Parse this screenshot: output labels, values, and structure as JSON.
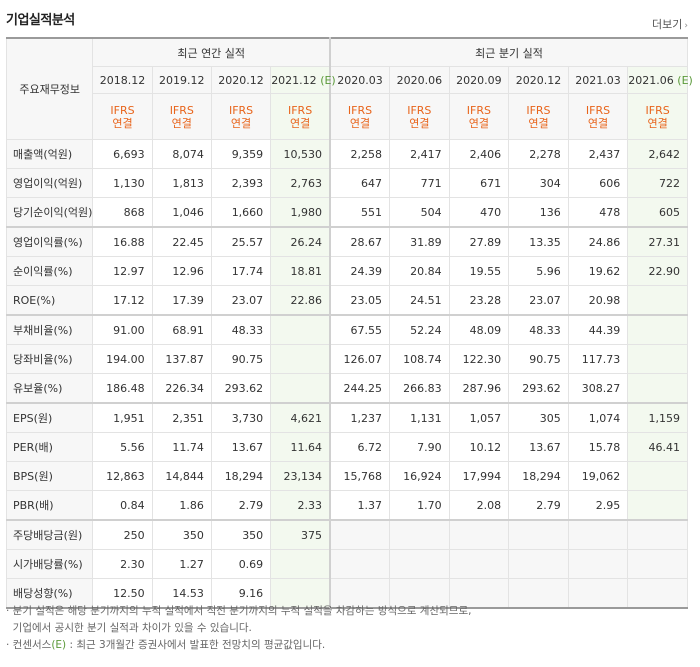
{
  "title": "기업실적분석",
  "more_label": "더보기",
  "more_arrow": "›",
  "corner_label": "주요재무정보",
  "group_annual": "최근 연간 실적",
  "group_quarter": "최근 분기 실적",
  "ifrs_line1": "IFRS",
  "ifrs_line2": "연결",
  "estimate_mark": "(E)",
  "periods": [
    {
      "label": "2018.12",
      "est": false
    },
    {
      "label": "2019.12",
      "est": false
    },
    {
      "label": "2020.12",
      "est": false
    },
    {
      "label": "2021.12",
      "est": true
    },
    {
      "label": "2020.03",
      "est": false
    },
    {
      "label": "2020.06",
      "est": false
    },
    {
      "label": "2020.09",
      "est": false
    },
    {
      "label": "2020.12",
      "est": false
    },
    {
      "label": "2021.03",
      "est": false
    },
    {
      "label": "2021.06",
      "est": true
    }
  ],
  "rows": [
    {
      "label": "매출액(억원)",
      "values": [
        "6,693",
        "8,074",
        "9,359",
        "10,530",
        "2,258",
        "2,417",
        "2,406",
        "2,278",
        "2,437",
        "2,642"
      ]
    },
    {
      "label": "영업이익(억원)",
      "values": [
        "1,130",
        "1,813",
        "2,393",
        "2,763",
        "647",
        "771",
        "671",
        "304",
        "606",
        "722"
      ]
    },
    {
      "label": "당기순이익(억원)",
      "values": [
        "868",
        "1,046",
        "1,660",
        "1,980",
        "551",
        "504",
        "470",
        "136",
        "478",
        "605"
      ]
    },
    {
      "label": "영업이익률(%)",
      "values": [
        "16.88",
        "22.45",
        "25.57",
        "26.24",
        "28.67",
        "31.89",
        "27.89",
        "13.35",
        "24.86",
        "27.31"
      ]
    },
    {
      "label": "순이익률(%)",
      "values": [
        "12.97",
        "12.96",
        "17.74",
        "18.81",
        "24.39",
        "20.84",
        "19.55",
        "5.96",
        "19.62",
        "22.90"
      ]
    },
    {
      "label": "ROE(%)",
      "values": [
        "17.12",
        "17.39",
        "23.07",
        "22.86",
        "23.05",
        "24.51",
        "23.28",
        "23.07",
        "20.98",
        ""
      ]
    },
    {
      "label": "부채비율(%)",
      "values": [
        "91.00",
        "68.91",
        "48.33",
        "",
        "67.55",
        "52.24",
        "48.09",
        "48.33",
        "44.39",
        ""
      ]
    },
    {
      "label": "당좌비율(%)",
      "values": [
        "194.00",
        "137.87",
        "90.75",
        "",
        "126.07",
        "108.74",
        "122.30",
        "90.75",
        "117.73",
        ""
      ]
    },
    {
      "label": "유보율(%)",
      "values": [
        "186.48",
        "226.34",
        "293.62",
        "",
        "244.25",
        "266.83",
        "287.96",
        "293.62",
        "308.27",
        ""
      ]
    },
    {
      "label": "EPS(원)",
      "values": [
        "1,951",
        "2,351",
        "3,730",
        "4,621",
        "1,237",
        "1,131",
        "1,057",
        "305",
        "1,074",
        "1,159"
      ]
    },
    {
      "label": "PER(배)",
      "values": [
        "5.56",
        "11.74",
        "13.67",
        "11.64",
        "6.72",
        "7.90",
        "10.12",
        "13.67",
        "15.78",
        "46.41"
      ]
    },
    {
      "label": "BPS(원)",
      "values": [
        "12,863",
        "14,844",
        "18,294",
        "23,134",
        "15,768",
        "16,924",
        "17,994",
        "18,294",
        "19,062",
        ""
      ]
    },
    {
      "label": "PBR(배)",
      "values": [
        "0.84",
        "1.86",
        "2.79",
        "2.33",
        "1.37",
        "1.70",
        "2.08",
        "2.79",
        "2.95",
        ""
      ]
    },
    {
      "label": "주당배당금(원)",
      "values": [
        "250",
        "350",
        "350",
        "375",
        "",
        "",
        "",
        "",
        "",
        ""
      ]
    },
    {
      "label": "시가배당률(%)",
      "values": [
        "2.30",
        "1.27",
        "0.69",
        "",
        "",
        "",
        "",
        "",
        "",
        ""
      ]
    },
    {
      "label": "배당성향(%)",
      "values": [
        "12.50",
        "14.53",
        "9.16",
        "",
        "",
        "",
        "",
        "",
        "",
        ""
      ]
    }
  ],
  "notes": [
    "· 분기 실적은 해당 분기까지의 누적 실적에서 직전 분기까지의 누적 실적을 차감하는 방식으로 계산되므로,",
    "  기업에서 공시한 분기 실적과 차이가 있을 수 있습니다."
  ],
  "note3_prefix": "· 컨센서스",
  "note3_mark": "(E)",
  "note3_suffix": " : 최근 3개월간 증권사에서 발표한 전망치의 평균값입니다."
}
